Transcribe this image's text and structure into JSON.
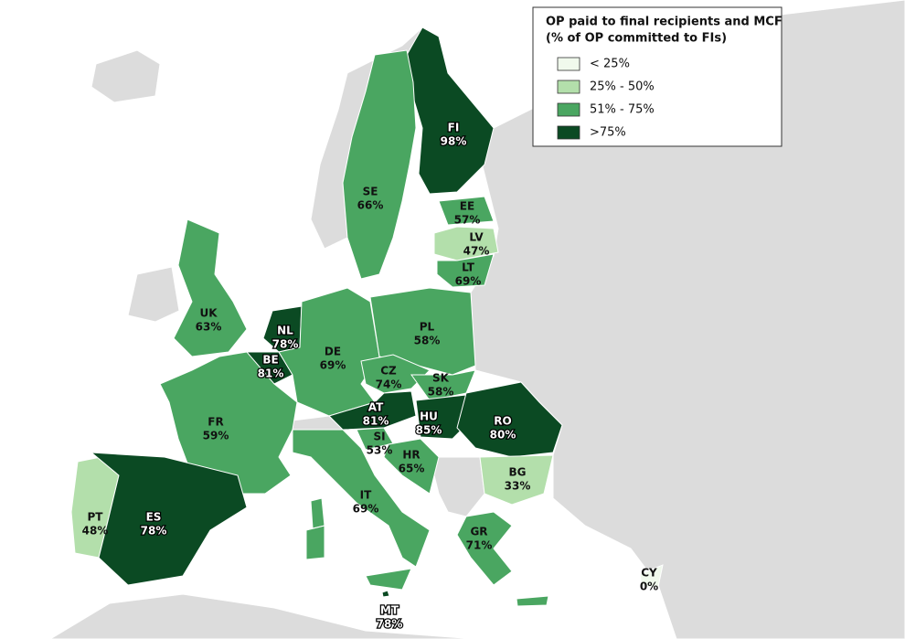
{
  "legend": {
    "title": [
      "OP paid to final recipients and MCF",
      "(% of OP committed to FIs)"
    ],
    "items": [
      {
        "label": "< 25%",
        "color": "#f0f9ec"
      },
      {
        "label": "25% - 50%",
        "color": "#b3dfab"
      },
      {
        "label": "51% - 75%",
        "color": "#4aa661"
      },
      {
        "label": ">75%",
        "color": "#0b4a23"
      }
    ]
  },
  "countries": [
    {
      "code": "FI",
      "value": "98%",
      "color": "#0b4a23"
    },
    {
      "code": "SE",
      "value": "66%",
      "color": "#4aa661"
    },
    {
      "code": "EE",
      "value": "57%",
      "color": "#4aa661"
    },
    {
      "code": "LV",
      "value": "47%",
      "color": "#b3dfab"
    },
    {
      "code": "LT",
      "value": "69%",
      "color": "#4aa661"
    },
    {
      "code": "UK",
      "value": "63%",
      "color": "#4aa661"
    },
    {
      "code": "NL",
      "value": "78%",
      "color": "#0b4a23"
    },
    {
      "code": "BE",
      "value": "81%",
      "color": "#0b4a23"
    },
    {
      "code": "DE",
      "value": "69%",
      "color": "#4aa661"
    },
    {
      "code": "PL",
      "value": "58%",
      "color": "#4aa661"
    },
    {
      "code": "CZ",
      "value": "74%",
      "color": "#4aa661"
    },
    {
      "code": "SK",
      "value": "58%",
      "color": "#4aa661"
    },
    {
      "code": "AT",
      "value": "81%",
      "color": "#0b4a23"
    },
    {
      "code": "HU",
      "value": "85%",
      "color": "#0b4a23"
    },
    {
      "code": "RO",
      "value": "80%",
      "color": "#0b4a23"
    },
    {
      "code": "FR",
      "value": "59%",
      "color": "#4aa661"
    },
    {
      "code": "SI",
      "value": "53%",
      "color": "#4aa661"
    },
    {
      "code": "HR",
      "value": "65%",
      "color": "#4aa661"
    },
    {
      "code": "BG",
      "value": "33%",
      "color": "#b3dfab"
    },
    {
      "code": "IT",
      "value": "69%",
      "color": "#4aa661"
    },
    {
      "code": "PT",
      "value": "48%",
      "color": "#b3dfab"
    },
    {
      "code": "ES",
      "value": "78%",
      "color": "#0b4a23"
    },
    {
      "code": "GR",
      "value": "71%",
      "color": "#4aa661"
    },
    {
      "code": "CY",
      "value": "0%",
      "color": "#f0f9ec"
    },
    {
      "code": "MT",
      "value": "78%",
      "color": "#0b4a23"
    }
  ]
}
